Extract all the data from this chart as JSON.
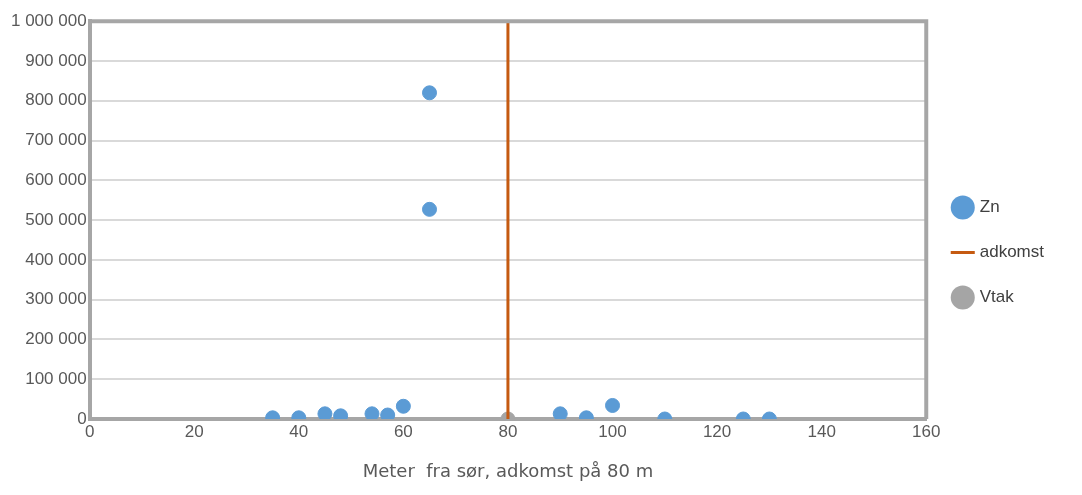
{
  "chart_data": {
    "type": "scatter",
    "xlabel": "Meter  fra sør, adkomst på 80 m",
    "xlim": [
      0,
      160
    ],
    "xticks": [
      0,
      20,
      40,
      60,
      80,
      100,
      120,
      140,
      160
    ],
    "ylim": [
      0,
      1000000
    ],
    "yticks": [
      {
        "value": 0,
        "label": "0"
      },
      {
        "value": 100000,
        "label": "100 000"
      },
      {
        "value": 200000,
        "label": "200 000"
      },
      {
        "value": 300000,
        "label": "300 000"
      },
      {
        "value": 400000,
        "label": "400 000"
      },
      {
        "value": 500000,
        "label": "500 000"
      },
      {
        "value": 600000,
        "label": "600 000"
      },
      {
        "value": 700000,
        "label": "700 000"
      },
      {
        "value": 800000,
        "label": "800 000"
      },
      {
        "value": 900000,
        "label": "900 000"
      },
      {
        "value": 1000000,
        "label": "1 000 000"
      }
    ],
    "grid": "y",
    "legend": "right",
    "marker": "circle",
    "series": [
      {
        "name": "Zn",
        "color": "#5b9bd5",
        "x": [
          35,
          40,
          45,
          48,
          54,
          57,
          60,
          65,
          65,
          90,
          95,
          100,
          110,
          125,
          130
        ],
        "values": [
          3000,
          3000,
          13000,
          8000,
          13000,
          10000,
          32000,
          820000,
          527000,
          13000,
          3000,
          34000,
          0,
          0,
          0
        ]
      },
      {
        "name": "adkomst",
        "type": "line",
        "color": "#c55a11",
        "x": [
          80,
          80
        ],
        "values": [
          0,
          1000000
        ],
        "marker": "none"
      },
      {
        "name": "Vtak",
        "color": "#a5a5a5",
        "x": [
          80
        ],
        "values": [
          0
        ]
      }
    ]
  }
}
